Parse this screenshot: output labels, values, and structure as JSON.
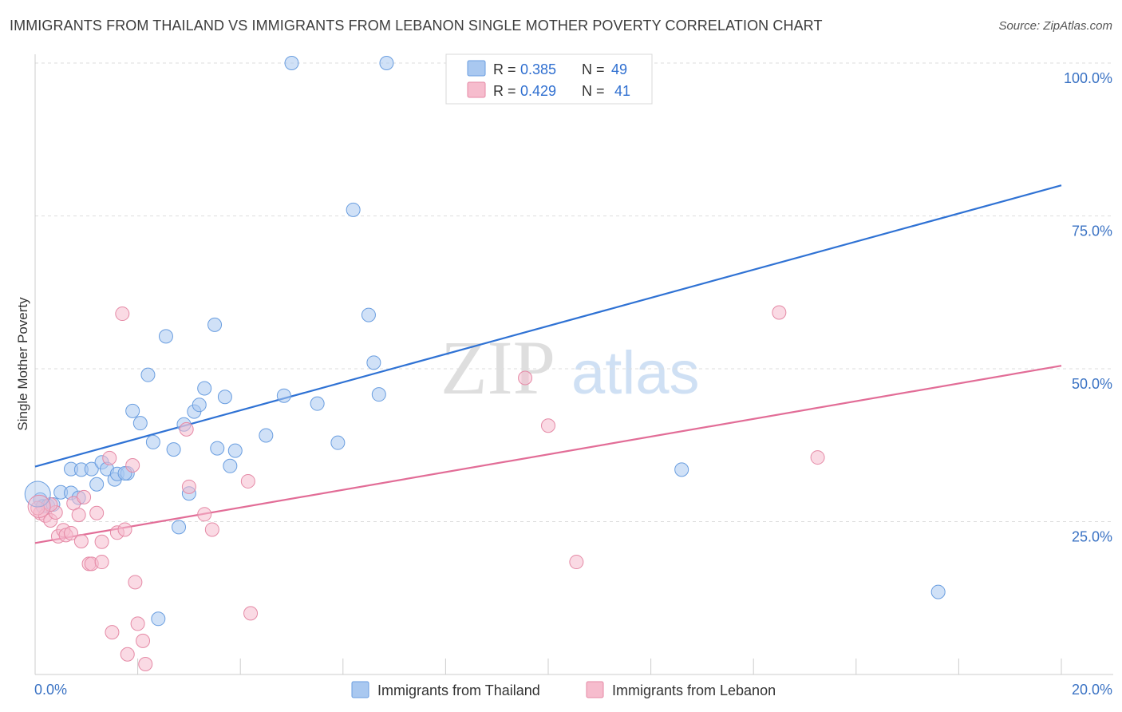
{
  "title": "IMMIGRANTS FROM THAILAND VS IMMIGRANTS FROM LEBANON SINGLE MOTHER POVERTY CORRELATION CHART",
  "source": "Source: ZipAtlas.com",
  "watermark": {
    "zip": "ZIP",
    "atlas": "atlas"
  },
  "chart_data": {
    "type": "scatter",
    "ylabel": "Single Mother Poverty",
    "xlim": [
      0,
      20
    ],
    "ylim": [
      0,
      100
    ],
    "y_ticks": [
      {
        "value": 25,
        "label": "25.0%"
      },
      {
        "value": 50,
        "label": "50.0%"
      },
      {
        "value": 75,
        "label": "75.0%"
      },
      {
        "value": 100,
        "label": "100.0%"
      }
    ],
    "x_tick_labels": {
      "min": "0.0%",
      "max": "20.0%"
    },
    "grid": true,
    "legend_placement": "top-center",
    "stats": [
      {
        "r_label": "R =",
        "r": "0.385",
        "n_label": "N =",
        "n": "49"
      },
      {
        "r_label": "R =",
        "r": "0.429",
        "n_label": "N =",
        "n": "41"
      }
    ],
    "series": [
      {
        "name": "Immigrants from Thailand",
        "color": "#a9c8f0",
        "stroke": "#6a9ee0",
        "line_color": "#2f72d4",
        "trend": [
          [
            0,
            34
          ],
          [
            20,
            80
          ]
        ],
        "points": [
          [
            0.1,
            28.6
          ],
          [
            0.15,
            27.5
          ],
          [
            0.25,
            27.6
          ],
          [
            0.35,
            27.8
          ],
          [
            0.5,
            29.8
          ],
          [
            0.7,
            29.7
          ],
          [
            0.85,
            28.9
          ],
          [
            0.7,
            33.6
          ],
          [
            0.9,
            33.5
          ],
          [
            1.1,
            33.6
          ],
          [
            1.2,
            31.1
          ],
          [
            1.3,
            34.7
          ],
          [
            1.4,
            33.6
          ],
          [
            1.55,
            31.9
          ],
          [
            1.6,
            32.8
          ],
          [
            1.8,
            32.9
          ],
          [
            1.75,
            32.9
          ],
          [
            1.9,
            43.1
          ],
          [
            2.05,
            41.1
          ],
          [
            2.2,
            49.0
          ],
          [
            2.3,
            38.0
          ],
          [
            2.55,
            55.3
          ],
          [
            2.7,
            36.8
          ],
          [
            2.8,
            24.1
          ],
          [
            2.9,
            40.9
          ],
          [
            3.0,
            29.6
          ],
          [
            3.1,
            43.0
          ],
          [
            3.2,
            44.1
          ],
          [
            3.3,
            46.8
          ],
          [
            3.5,
            57.2
          ],
          [
            3.55,
            37.0
          ],
          [
            3.7,
            45.4
          ],
          [
            3.8,
            34.1
          ],
          [
            3.9,
            36.6
          ],
          [
            4.5,
            39.1
          ],
          [
            4.85,
            45.6
          ],
          [
            5.0,
            100
          ],
          [
            5.5,
            44.3
          ],
          [
            5.9,
            37.9
          ],
          [
            6.2,
            76.0
          ],
          [
            6.5,
            58.8
          ],
          [
            6.6,
            51.0
          ],
          [
            6.7,
            45.8
          ],
          [
            6.85,
            100
          ],
          [
            9.5,
            100
          ],
          [
            9.55,
            100
          ],
          [
            12.6,
            33.5
          ],
          [
            17.6,
            13.5
          ],
          [
            2.4,
            9.1
          ]
        ]
      },
      {
        "name": "Immigrants from Lebanon",
        "color": "#f6bccd",
        "stroke": "#e58aa6",
        "line_color": "#e26d97",
        "trend": [
          [
            0,
            21.5
          ],
          [
            20,
            50.5
          ]
        ],
        "points": [
          [
            0.1,
            26.4
          ],
          [
            0.2,
            26.0
          ],
          [
            0.3,
            25.2
          ],
          [
            0.4,
            26.5
          ],
          [
            0.45,
            22.6
          ],
          [
            0.55,
            23.6
          ],
          [
            0.6,
            22.8
          ],
          [
            0.7,
            23.1
          ],
          [
            0.75,
            28.0
          ],
          [
            0.85,
            26.1
          ],
          [
            0.9,
            21.8
          ],
          [
            0.95,
            29.0
          ],
          [
            1.05,
            18.1
          ],
          [
            1.1,
            18.1
          ],
          [
            1.2,
            26.4
          ],
          [
            1.3,
            18.4
          ],
          [
            1.3,
            21.7
          ],
          [
            1.45,
            35.4
          ],
          [
            1.5,
            6.9
          ],
          [
            1.6,
            23.2
          ],
          [
            1.7,
            59.0
          ],
          [
            1.75,
            23.7
          ],
          [
            1.8,
            3.3
          ],
          [
            1.9,
            34.2
          ],
          [
            1.95,
            15.1
          ],
          [
            2.0,
            8.3
          ],
          [
            2.1,
            5.5
          ],
          [
            2.15,
            1.7
          ],
          [
            2.95,
            40.1
          ],
          [
            3.0,
            30.7
          ],
          [
            3.3,
            26.2
          ],
          [
            3.45,
            23.7
          ],
          [
            4.15,
            31.6
          ],
          [
            4.2,
            10.0
          ],
          [
            9.55,
            48.5
          ],
          [
            10.0,
            40.7
          ],
          [
            10.55,
            18.4
          ],
          [
            14.5,
            59.2
          ],
          [
            15.25,
            35.5
          ],
          [
            0.05,
            27.2
          ],
          [
            0.3,
            27.8
          ]
        ]
      }
    ]
  }
}
